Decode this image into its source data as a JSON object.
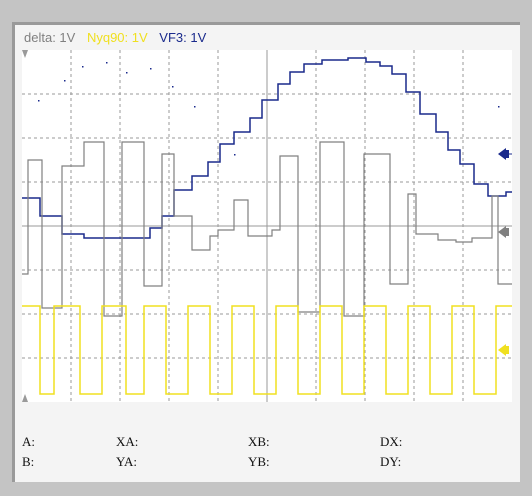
{
  "legend": [
    {
      "label": "delta: 1V",
      "color": "#808080"
    },
    {
      "label": "Nyq90: 1V",
      "color": "#f0e020"
    },
    {
      "label": "VF3: 1V",
      "color": "#1a2a8c"
    }
  ],
  "readouts": {
    "a": "A:",
    "xa": "XA:",
    "xb": "XB:",
    "dx": "DX:",
    "b": "B:",
    "ya": "YA:",
    "yb": "YB:",
    "dy": "DY:"
  },
  "colors": {
    "grid": "#9a9a9a",
    "gray_trace": "#808080",
    "yellow_trace": "#f0e020",
    "blue_trace": "#1a2a8c",
    "plot_bg": "#ffffff"
  },
  "icons": [
    "ch-marker-blue-icon",
    "ch-marker-gray-icon",
    "ch-marker-yellow-icon",
    "trigger-top-icon",
    "trigger-bottom-icon"
  ]
}
